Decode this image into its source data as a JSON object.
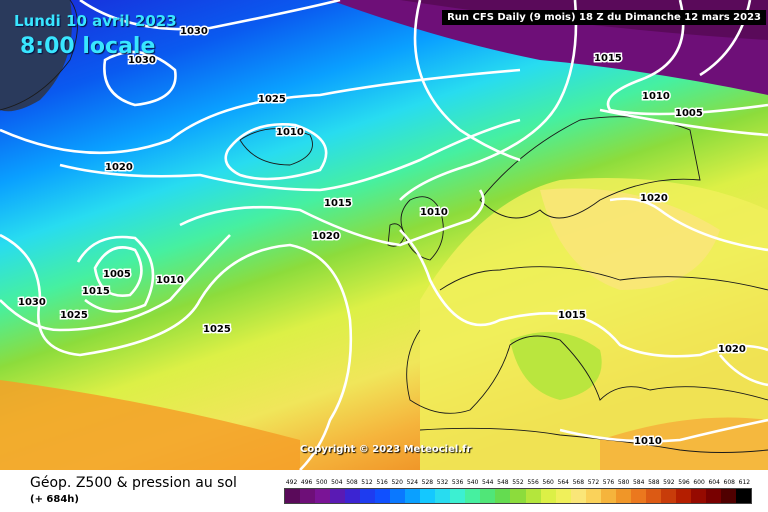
{
  "header": {
    "date": "Lundi 10 avril 2023",
    "time": "8:00 locale",
    "run": "Run CFS Daily (9 mois) 18 Z du Dimanche 12 mars 2023"
  },
  "copyright": "Copyright © 2023 Meteociel.fr",
  "footer": {
    "title": "Géop. Z500 & pression au sol",
    "subtitle": "(+ 684h)"
  },
  "isobar_labels": [
    "1030",
    "1030",
    "1025",
    "1010",
    "1020",
    "1015",
    "1020",
    "1010",
    "1005",
    "1015",
    "1010",
    "1030",
    "1025",
    "1025",
    "1015",
    "1010",
    "1005",
    "1020",
    "1015",
    "1020",
    "1010"
  ],
  "legend": {
    "values": [
      "492",
      "496",
      "500",
      "504",
      "508",
      "512",
      "516",
      "520",
      "524",
      "528",
      "532",
      "536",
      "540",
      "544",
      "548",
      "552",
      "556",
      "560",
      "564",
      "568",
      "572",
      "576",
      "580",
      "584",
      "588",
      "592",
      "596",
      "600",
      "604",
      "608",
      "612"
    ],
    "colors": [
      "#5a0a5a",
      "#6e0f78",
      "#7a1496",
      "#5a1ab4",
      "#3c24d2",
      "#1e3cf0",
      "#1050ff",
      "#0a78ff",
      "#0aa0ff",
      "#14c8ff",
      "#28dcf0",
      "#3cf0d2",
      "#46f0a0",
      "#50e678",
      "#64dc50",
      "#8cdc3c",
      "#b4e63c",
      "#dcf046",
      "#f0f05a",
      "#fae678",
      "#fad25a",
      "#f5b43c",
      "#f09628",
      "#eb781e",
      "#dc5a14",
      "#c83c0a",
      "#b41e00",
      "#960a00",
      "#780000",
      "#500000",
      "#000000"
    ]
  }
}
